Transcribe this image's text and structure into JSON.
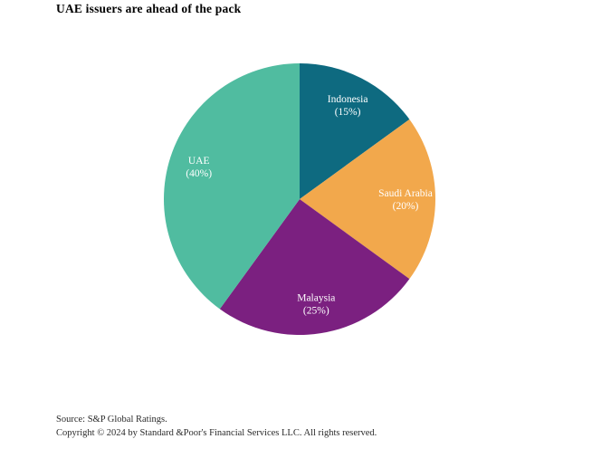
{
  "title": "UAE issuers are ahead of the pack",
  "footer": {
    "source": "Source: S&P Global Ratings.",
    "copyright": "Copyright © 2024 by Standard &Poor's Financial Services LLC. All rights reserved."
  },
  "chart_data": {
    "type": "pie",
    "title": "UAE issuers are ahead of the pack",
    "legend": "none",
    "direction": "clockwise",
    "start_angle_deg": 0,
    "label_format": "{label} ({value}%)",
    "label_text_color": "#ffffff",
    "slices": [
      {
        "label": "Indonesia",
        "value": 15,
        "display_value": "(15%)",
        "color": "#0e6a80"
      },
      {
        "label": "Saudi Arabia",
        "value": 20,
        "display_value": "(20%)",
        "color": "#f2a84c"
      },
      {
        "label": "Malaysia",
        "value": 25,
        "display_value": "(25%)",
        "color": "#7b2080"
      },
      {
        "label": "UAE",
        "value": 40,
        "display_value": "(40%)",
        "color": "#50bca0"
      }
    ]
  }
}
